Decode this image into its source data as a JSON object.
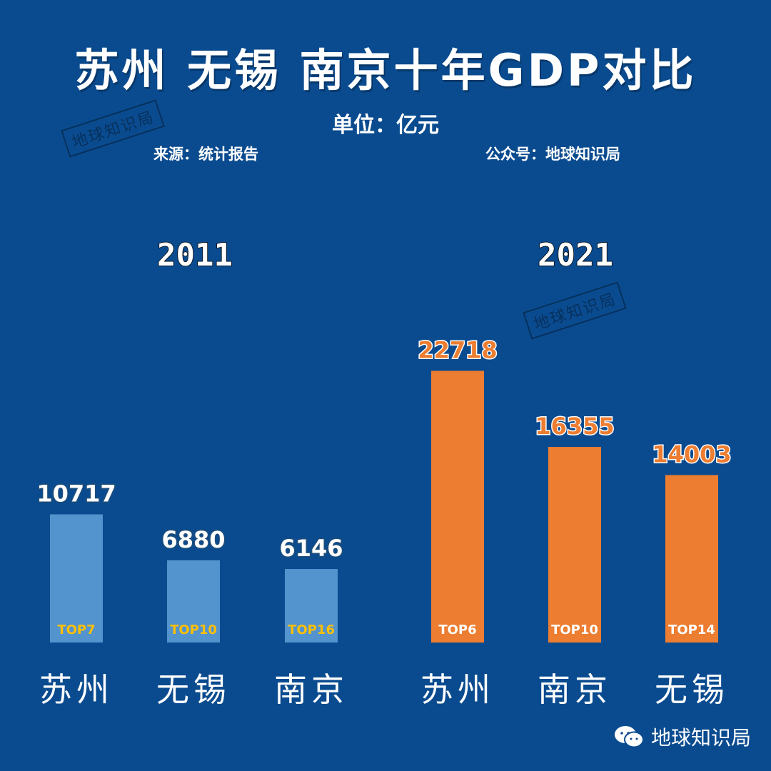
{
  "title": "苏州 无锡 南京十年GDP对比",
  "unit": "单位：亿元",
  "source": "来源：统计报告",
  "account": "公众号：地球知识局",
  "watermark": "地球知识局",
  "footer": {
    "text": "地球知识局",
    "icon": "wechat-icon"
  },
  "colors": {
    "background": "#0a4b8f",
    "bar_2011": "#5b9bd5",
    "bar_2021": "#ed7d31",
    "rank_2011": "#ffc000",
    "rank_2021": "#ffffff"
  },
  "chart_data": [
    {
      "type": "bar",
      "title": "2011",
      "categories": [
        "苏州",
        "无锡",
        "南京"
      ],
      "values": [
        10717,
        6880,
        6146
      ],
      "ranks": [
        "TOP7",
        "TOP10",
        "TOP16"
      ],
      "ylim": [
        0,
        24000
      ],
      "grid": false
    },
    {
      "type": "bar",
      "title": "2021",
      "categories": [
        "苏州",
        "南京",
        "无锡"
      ],
      "values": [
        22718,
        16355,
        14003
      ],
      "ranks": [
        "TOP6",
        "TOP10",
        "TOP14"
      ],
      "ylim": [
        0,
        24000
      ],
      "grid": false
    }
  ]
}
